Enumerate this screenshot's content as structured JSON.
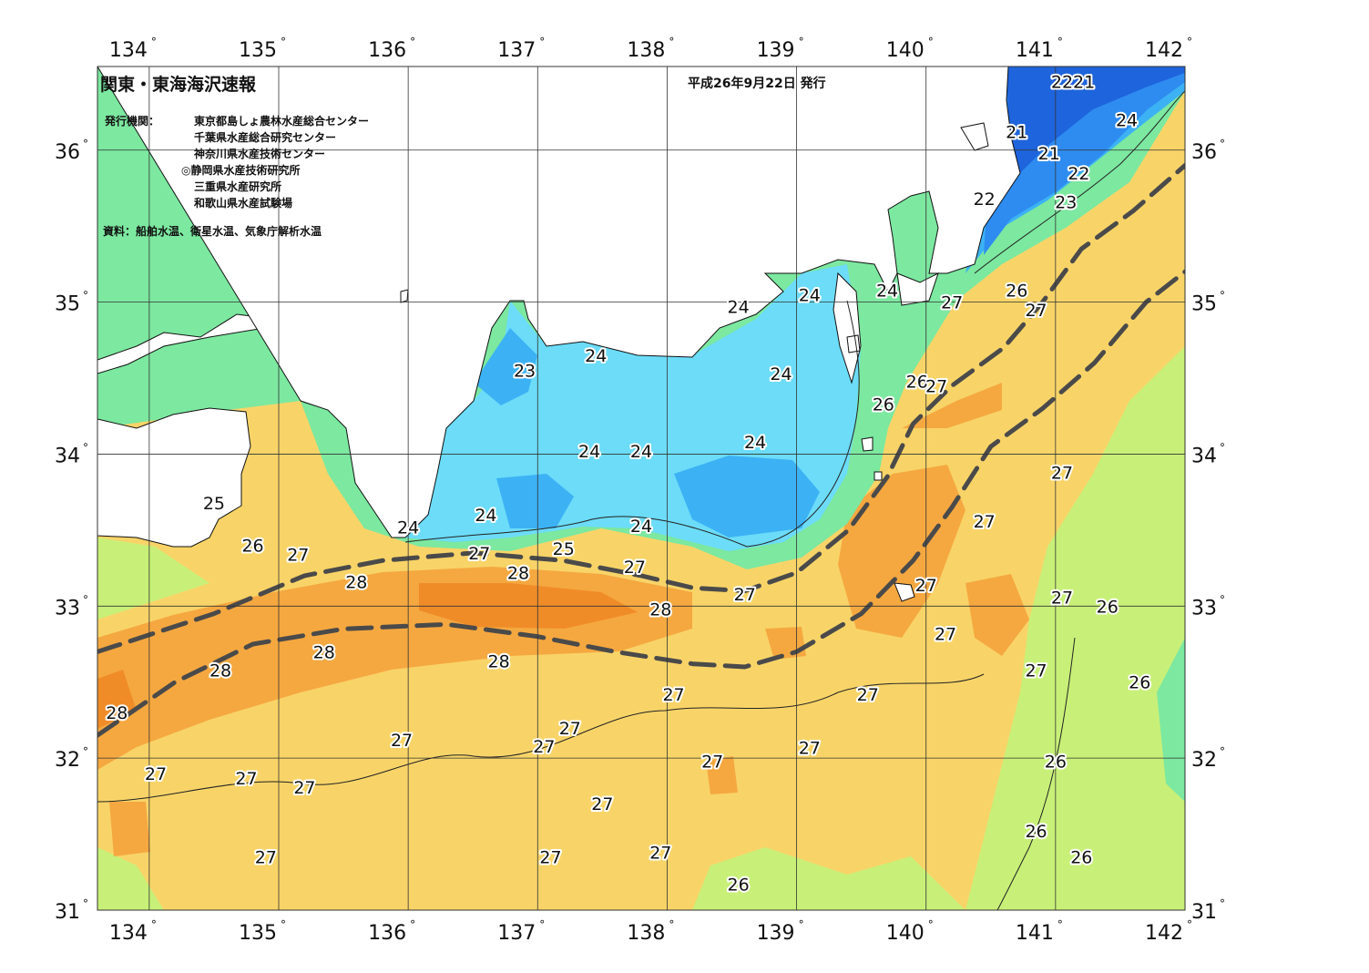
{
  "title": "関東・東海海沢速報",
  "issue_date": "平成26年9月22日 発行",
  "issuer_heading": "発行機関：",
  "issuers": [
    "東京都島しょ農林水産総合センター",
    "千葉県水産総合研究センター",
    "神奈川県水産技術センター",
    "◎静岡県水産技術研究所",
    "三重県水産研究所",
    "和歌山県水産試験場"
  ],
  "source": "資料：船舶水温、衛星水温、気象庁解析水温",
  "degree_symbol": "°",
  "longitudes": [
    "134",
    "135",
    "136",
    "137",
    "138",
    "139",
    "140",
    "141",
    "142"
  ],
  "latitudes": [
    "31",
    "32",
    "33",
    "34",
    "35",
    "36"
  ],
  "bounds": {
    "lon_min": 133.6,
    "lon_max": 142.0,
    "lat_min": 31.0,
    "lat_max": 36.55
  },
  "colors": {
    "t21": "#1e64dc",
    "t22": "#2e8cf0",
    "t23": "#3cb2f5",
    "t24": "#6cdcf8",
    "t25": "#7ce8a0",
    "t26": "#c8f078",
    "t27": "#f8d468",
    "t28": "#f5a840",
    "t28_core": "#f08c28",
    "land": "#ffffff",
    "kuroshio_axis": "#4a4a4a"
  },
  "kuroshio": {
    "north_edge": [
      [
        133.6,
        32.7
      ],
      [
        134.5,
        32.95
      ],
      [
        135.2,
        33.2
      ],
      [
        135.8,
        33.3
      ],
      [
        136.5,
        33.35
      ],
      [
        137.2,
        33.3
      ],
      [
        137.8,
        33.2
      ],
      [
        138.2,
        33.12
      ],
      [
        138.6,
        33.1
      ],
      [
        139.0,
        33.22
      ],
      [
        139.4,
        33.5
      ],
      [
        139.7,
        33.85
      ],
      [
        139.9,
        34.2
      ],
      [
        140.2,
        34.45
      ],
      [
        140.6,
        34.7
      ],
      [
        140.9,
        35.0
      ],
      [
        141.2,
        35.35
      ],
      [
        141.6,
        35.6
      ],
      [
        142.0,
        35.9
      ]
    ],
    "south_edge": [
      [
        133.6,
        32.15
      ],
      [
        134.2,
        32.5
      ],
      [
        134.8,
        32.75
      ],
      [
        135.5,
        32.85
      ],
      [
        136.3,
        32.88
      ],
      [
        137.0,
        32.8
      ],
      [
        137.6,
        32.7
      ],
      [
        138.2,
        32.62
      ],
      [
        138.6,
        32.6
      ],
      [
        139.0,
        32.7
      ],
      [
        139.5,
        32.95
      ],
      [
        139.9,
        33.3
      ],
      [
        140.2,
        33.65
      ],
      [
        140.5,
        34.05
      ],
      [
        140.9,
        34.3
      ],
      [
        141.3,
        34.6
      ],
      [
        141.7,
        35.0
      ],
      [
        142.0,
        35.2
      ]
    ]
  },
  "isotherm_labels": [
    {
      "t": "22",
      "lon": 141.05,
      "lat": 36.45
    },
    {
      "t": "21",
      "lon": 141.22,
      "lat": 36.45
    },
    {
      "t": "24",
      "lon": 141.55,
      "lat": 36.2
    },
    {
      "t": "21",
      "lon": 140.7,
      "lat": 36.12
    },
    {
      "t": "21",
      "lon": 140.95,
      "lat": 35.98
    },
    {
      "t": "22",
      "lon": 141.18,
      "lat": 35.85
    },
    {
      "t": "22",
      "lon": 140.45,
      "lat": 35.68
    },
    {
      "t": "23",
      "lon": 141.08,
      "lat": 35.66
    },
    {
      "t": "24",
      "lon": 138.55,
      "lat": 34.97
    },
    {
      "t": "24",
      "lon": 139.1,
      "lat": 35.05
    },
    {
      "t": "24",
      "lon": 139.7,
      "lat": 35.08
    },
    {
      "t": "27",
      "lon": 140.2,
      "lat": 35.0
    },
    {
      "t": "26",
      "lon": 140.7,
      "lat": 35.08
    },
    {
      "t": "27",
      "lon": 140.85,
      "lat": 34.95
    },
    {
      "t": "24",
      "lon": 137.45,
      "lat": 34.65
    },
    {
      "t": "23",
      "lon": 136.9,
      "lat": 34.55
    },
    {
      "t": "24",
      "lon": 138.88,
      "lat": 34.53
    },
    {
      "t": "26",
      "lon": 139.93,
      "lat": 34.48
    },
    {
      "t": "27",
      "lon": 140.08,
      "lat": 34.45
    },
    {
      "t": "26",
      "lon": 139.67,
      "lat": 34.33
    },
    {
      "t": "24",
      "lon": 137.4,
      "lat": 34.02
    },
    {
      "t": "24",
      "lon": 137.8,
      "lat": 34.02
    },
    {
      "t": "24",
      "lon": 138.68,
      "lat": 34.08
    },
    {
      "t": "27",
      "lon": 141.05,
      "lat": 33.88
    },
    {
      "t": "25",
      "lon": 134.5,
      "lat": 33.68
    },
    {
      "t": "24",
      "lon": 136.6,
      "lat": 33.6
    },
    {
      "t": "24",
      "lon": 136.0,
      "lat": 33.52
    },
    {
      "t": "24",
      "lon": 137.8,
      "lat": 33.53
    },
    {
      "t": "27",
      "lon": 140.45,
      "lat": 33.56
    },
    {
      "t": "26",
      "lon": 134.8,
      "lat": 33.4
    },
    {
      "t": "27",
      "lon": 135.15,
      "lat": 33.34
    },
    {
      "t": "27",
      "lon": 136.55,
      "lat": 33.35
    },
    {
      "t": "25",
      "lon": 137.2,
      "lat": 33.38
    },
    {
      "t": "27",
      "lon": 137.75,
      "lat": 33.26
    },
    {
      "t": "28",
      "lon": 136.85,
      "lat": 33.22
    },
    {
      "t": "28",
      "lon": 135.6,
      "lat": 33.16
    },
    {
      "t": "27",
      "lon": 138.6,
      "lat": 33.08
    },
    {
      "t": "27",
      "lon": 140.0,
      "lat": 33.14
    },
    {
      "t": "27",
      "lon": 141.05,
      "lat": 33.06
    },
    {
      "t": "26",
      "lon": 141.4,
      "lat": 33.0
    },
    {
      "t": "28",
      "lon": 137.95,
      "lat": 32.98
    },
    {
      "t": "27",
      "lon": 140.15,
      "lat": 32.82
    },
    {
      "t": "28",
      "lon": 135.35,
      "lat": 32.7
    },
    {
      "t": "28",
      "lon": 136.7,
      "lat": 32.64
    },
    {
      "t": "28",
      "lon": 134.55,
      "lat": 32.58
    },
    {
      "t": "27",
      "lon": 140.85,
      "lat": 32.58
    },
    {
      "t": "26",
      "lon": 141.65,
      "lat": 32.5
    },
    {
      "t": "28",
      "lon": 133.75,
      "lat": 32.3
    },
    {
      "t": "27",
      "lon": 138.05,
      "lat": 32.42
    },
    {
      "t": "27",
      "lon": 139.55,
      "lat": 32.42
    },
    {
      "t": "27",
      "lon": 137.25,
      "lat": 32.2
    },
    {
      "t": "27",
      "lon": 135.95,
      "lat": 32.12
    },
    {
      "t": "27",
      "lon": 137.05,
      "lat": 32.08
    },
    {
      "t": "27",
      "lon": 139.1,
      "lat": 32.07
    },
    {
      "t": "27",
      "lon": 138.35,
      "lat": 31.98
    },
    {
      "t": "26",
      "lon": 141.0,
      "lat": 31.98
    },
    {
      "t": "27",
      "lon": 134.05,
      "lat": 31.9
    },
    {
      "t": "27",
      "lon": 134.75,
      "lat": 31.87
    },
    {
      "t": "27",
      "lon": 135.2,
      "lat": 31.81
    },
    {
      "t": "27",
      "lon": 137.5,
      "lat": 31.7
    },
    {
      "t": "26",
      "lon": 140.85,
      "lat": 31.52
    },
    {
      "t": "27",
      "lon": 137.95,
      "lat": 31.38
    },
    {
      "t": "27",
      "lon": 134.9,
      "lat": 31.35
    },
    {
      "t": "27",
      "lon": 137.1,
      "lat": 31.35
    },
    {
      "t": "26",
      "lon": 141.2,
      "lat": 31.35
    },
    {
      "t": "26",
      "lon": 138.55,
      "lat": 31.17
    }
  ]
}
